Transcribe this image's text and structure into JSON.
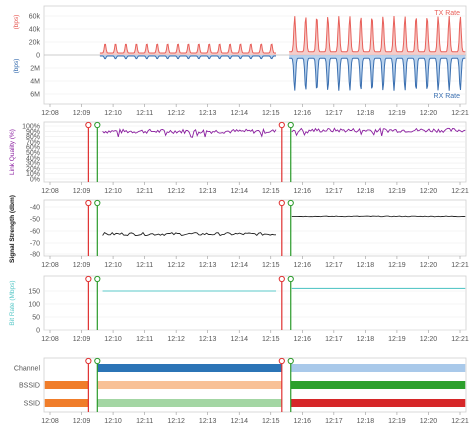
{
  "colors": {
    "tx": "#e8605a",
    "tx_fill": "#f3c1bd",
    "rx": "#3a6fb0",
    "rx_fill": "#a8c7e8",
    "quality": "#8b1fa0",
    "signal": "#222222",
    "bitrate": "#5bc8c8",
    "disconnect": "#e03030",
    "connect": "#2a9a2a",
    "channel_a": "#2b74b6",
    "channel_b": "#a9c9ea",
    "bssid_a": "#f07d2a",
    "bssid_b": "#f8c197",
    "bssid_c": "#2ca02c",
    "ssid_a": "#f07d2a",
    "ssid_b": "#a3d6a3",
    "ssid_c": "#d62728"
  },
  "time_ticks": [
    "12:08",
    "12:09",
    "12:10",
    "12:11",
    "12:12",
    "12:13",
    "12:14",
    "12:15",
    "12:16",
    "12:17",
    "12:18",
    "12:19",
    "12:20",
    "12:21"
  ],
  "events": {
    "disconnect_times": [
      "12:09:13",
      "12:15:21"
    ],
    "connect_times": [
      "12:09:30",
      "12:15:38"
    ]
  },
  "chart_data": [
    {
      "type": "line",
      "title": "",
      "ylabel_top": "(bps)",
      "ylabel_bottom": "(bps)",
      "y_ticks": [
        "60k",
        "40k",
        "20k",
        "0",
        "2M",
        "4M",
        "6M"
      ],
      "legend": [
        "TX Rate",
        "RX Rate"
      ],
      "segments": [
        {
          "start": "12:09:35",
          "end": "12:15:10",
          "tx_base": 3000,
          "tx_peak": 18000,
          "rx_base": 0.15,
          "rx_peak": 0.6,
          "period_min": 0.33
        },
        {
          "start": "12:15:35",
          "end": "12:21:10",
          "tx_base": 5000,
          "tx_peak": 60000,
          "rx_base": 0.5,
          "rx_peak": 5.5,
          "period_min": 0.35
        }
      ]
    },
    {
      "type": "line",
      "title": "",
      "ylabel": "Link Quality (%)",
      "y_ticks": [
        "100%",
        "90%",
        "80%",
        "70%",
        "60%",
        "50%",
        "40%",
        "30%",
        "20%",
        "10%",
        "0%"
      ],
      "segments": [
        {
          "start": "12:09:40",
          "end": "12:15:10",
          "mean": 0.9
        },
        {
          "start": "12:15:40",
          "end": "12:21:10",
          "mean": 0.92
        }
      ]
    },
    {
      "type": "line",
      "title": "",
      "ylabel": "Signal Strength (dbm)",
      "y_ticks": [
        "-40",
        "-50",
        "-60",
        "-70",
        "-80"
      ],
      "ylim": [
        -80,
        -35
      ],
      "segments": [
        {
          "start": "12:09:40",
          "end": "12:15:10",
          "mean": -63
        },
        {
          "start": "12:15:40",
          "end": "12:21:10",
          "mean": -48
        }
      ]
    },
    {
      "type": "line",
      "title": "",
      "ylabel": "Bit Rate (Mbps)",
      "y_ticks": [
        "150",
        "100",
        "50",
        "0"
      ],
      "ylim": [
        0,
        180
      ],
      "segments": [
        {
          "start": "12:09:40",
          "end": "12:15:10",
          "value": 150
        },
        {
          "start": "12:15:40",
          "end": "12:21:10",
          "value": 160
        }
      ]
    },
    {
      "type": "bar",
      "title": "",
      "rows": [
        "Channel",
        "BSSID",
        "SSID"
      ],
      "bands": [
        {
          "row": "Channel",
          "start": "12:09:30",
          "end": "12:15:21",
          "color_key": "channel_a"
        },
        {
          "row": "Channel",
          "start": "12:15:38",
          "end": "12:21:10",
          "color_key": "channel_b"
        },
        {
          "row": "BSSID",
          "start": "12:07:50",
          "end": "12:09:13",
          "color_key": "bssid_a"
        },
        {
          "row": "BSSID",
          "start": "12:09:30",
          "end": "12:15:21",
          "color_key": "bssid_b"
        },
        {
          "row": "BSSID",
          "start": "12:15:38",
          "end": "12:21:10",
          "color_key": "bssid_c"
        },
        {
          "row": "SSID",
          "start": "12:07:50",
          "end": "12:09:13",
          "color_key": "ssid_a"
        },
        {
          "row": "SSID",
          "start": "12:09:30",
          "end": "12:15:21",
          "color_key": "ssid_b"
        },
        {
          "row": "SSID",
          "start": "12:15:38",
          "end": "12:21:10",
          "color_key": "ssid_c"
        }
      ]
    }
  ]
}
